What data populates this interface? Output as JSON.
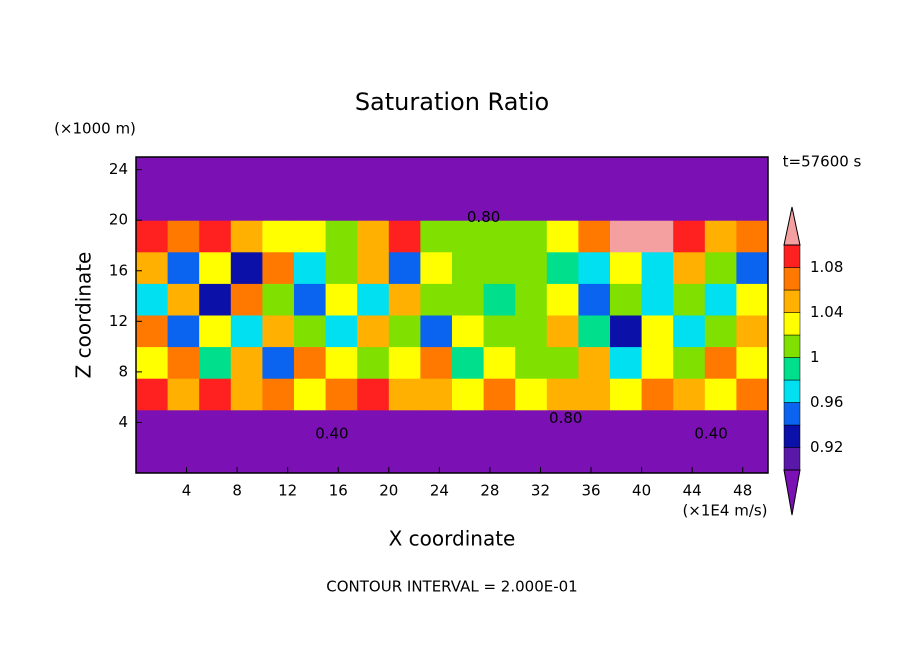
{
  "chart_data": {
    "type": "heatmap",
    "title": "Saturation Ratio",
    "y_unit": "(×1000 m)",
    "time_label": "t=57600 s",
    "ylabel": "Z coordinate",
    "xlabel": "X coordinate",
    "x_unit": "(×1E4 m/s)",
    "footnote": "CONTOUR INTERVAL = 2.000E-01",
    "xbins": [
      0,
      2.5,
      5,
      7.5,
      10,
      12.5,
      15,
      17.5,
      20,
      22.5,
      25,
      27.5,
      30,
      32.5,
      35,
      37.5,
      40,
      42.5,
      45,
      47.5,
      50
    ],
    "ybins": [
      0,
      2.5,
      5,
      7.5,
      10,
      12.5,
      15,
      17.5,
      20,
      22.5,
      25
    ],
    "z": [
      [
        0.4,
        0.4,
        0.4,
        0.4,
        0.4,
        0.4,
        0.4,
        0.4,
        0.4,
        0.4,
        0.4,
        0.4,
        0.4,
        0.4,
        0.4,
        0.4,
        0.4,
        0.4,
        0.4,
        0.4
      ],
      [
        0.5,
        0.5,
        0.5,
        0.5,
        0.5,
        0.5,
        0.5,
        0.5,
        0.5,
        0.5,
        0.5,
        0.5,
        0.5,
        0.5,
        0.5,
        0.5,
        0.5,
        0.5,
        0.5,
        0.5
      ],
      [
        1.08,
        1.05,
        1.09,
        1.04,
        1.07,
        1.03,
        1.06,
        1.08,
        1.04,
        1.05,
        1.03,
        1.06,
        1.02,
        1.05,
        1.04,
        1.03,
        1.07,
        1.05,
        1.03,
        1.06
      ],
      [
        1.03,
        1.07,
        0.99,
        1.04,
        0.95,
        1.06,
        1.02,
        1.0,
        1.03,
        1.07,
        0.98,
        1.02,
        1.0,
        1.01,
        1.04,
        0.97,
        1.02,
        1.01,
        1.06,
        1.03
      ],
      [
        1.06,
        0.94,
        1.02,
        0.96,
        1.04,
        1.01,
        0.97,
        1.05,
        1.0,
        0.95,
        1.03,
        1.01,
        1.0,
        1.04,
        0.99,
        0.93,
        1.02,
        0.96,
        1.01,
        1.05
      ],
      [
        0.97,
        1.04,
        0.93,
        1.07,
        1.0,
        0.95,
        1.03,
        0.96,
        1.05,
        1.01,
        1.0,
        0.98,
        1.0,
        1.02,
        0.94,
        1.01,
        0.97,
        1.0,
        0.96,
        1.03
      ],
      [
        1.05,
        0.95,
        1.03,
        0.93,
        1.06,
        0.97,
        1.01,
        1.04,
        0.95,
        1.02,
        1.0,
        1.01,
        1.0,
        0.99,
        0.96,
        1.03,
        0.97,
        1.04,
        1.01,
        0.95
      ],
      [
        1.08,
        1.06,
        1.09,
        1.05,
        1.03,
        1.02,
        1.0,
        1.04,
        1.08,
        1.0,
        1.01,
        1.0,
        1.0,
        1.02,
        1.06,
        1.11,
        1.12,
        1.09,
        1.05,
        1.07
      ],
      [
        0.7,
        0.7,
        0.7,
        0.7,
        0.7,
        0.7,
        0.7,
        0.7,
        0.7,
        0.7,
        0.7,
        0.7,
        0.7,
        0.7,
        0.7,
        0.7,
        0.7,
        0.7,
        0.7,
        0.7
      ],
      [
        0.5,
        0.5,
        0.5,
        0.5,
        0.5,
        0.5,
        0.5,
        0.5,
        0.5,
        0.5,
        0.5,
        0.5,
        0.5,
        0.5,
        0.5,
        0.5,
        0.5,
        0.5,
        0.5,
        0.5
      ]
    ],
    "xlim": [
      0,
      50
    ],
    "xticks": [
      4,
      8,
      12,
      16,
      20,
      24,
      28,
      32,
      36,
      40,
      44,
      48
    ],
    "ylim": [
      0,
      25
    ],
    "yticks": [
      4,
      8,
      12,
      16,
      20,
      24
    ],
    "levels": [
      0.9,
      0.92,
      0.94,
      0.96,
      0.98,
      1,
      1.02,
      1.04,
      1.06,
      1.08,
      1.1
    ],
    "colors": [
      "#7b10b4",
      "#5a18a8",
      "#0a10a8",
      "#0a64f0",
      "#00e0f0",
      "#00e08c",
      "#80e000",
      "#ffff00",
      "#ffb000",
      "#ff7800",
      "#ff2020",
      "#f4a0a0"
    ],
    "colorbar_ticks": [
      0.92,
      0.96,
      1,
      1.04,
      1.08
    ],
    "annotations": [
      {
        "text": "0.80",
        "x": 27.5,
        "z": 20.2
      },
      {
        "text": "0.80",
        "x": 34,
        "z": 4.3
      },
      {
        "text": "0.40",
        "x": 15.5,
        "z": 3.1
      },
      {
        "text": "0.40",
        "x": 45.5,
        "z": 3.1
      }
    ]
  }
}
